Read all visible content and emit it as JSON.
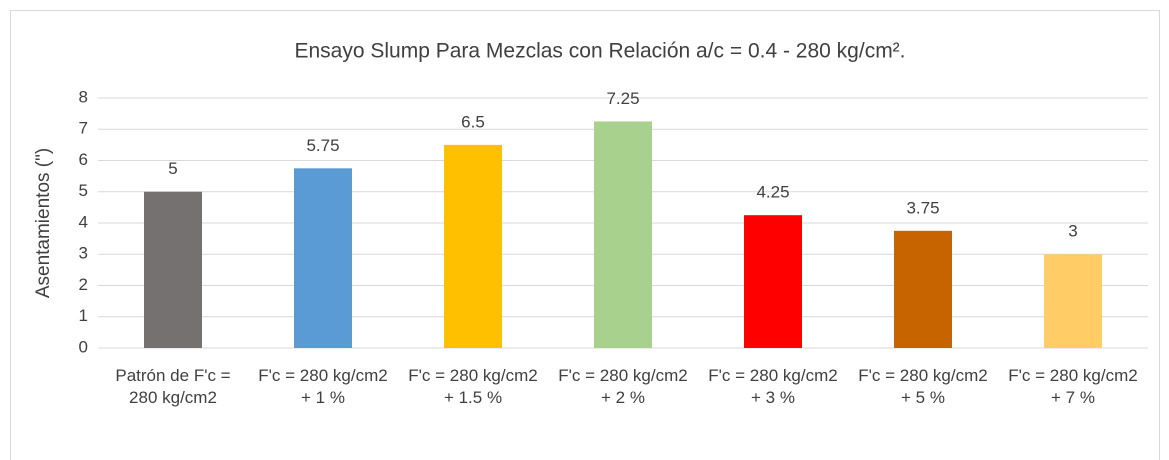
{
  "chart_data": {
    "type": "bar",
    "title": "Ensayo Slump Para Mezclas con Relación a/c = 0.4 - 280 kg/cm².",
    "y_label": "Asentamientos (\")",
    "categories": [
      "Patrón de F'c = 280 kg/cm2",
      "F'c = 280 kg/cm2 + 1 %",
      "F'c = 280 kg/cm2 + 1.5 %",
      "F'c = 280 kg/cm2 + 2 %",
      "F'c = 280 kg/cm2 + 3 %",
      "F'c = 280 kg/cm2 + 5 %",
      "F'c = 280 kg/cm2 + 7 %"
    ],
    "values": [
      5,
      5.75,
      6.5,
      7.25,
      4.25,
      3.75,
      3
    ],
    "colors": [
      "#767171",
      "#5b9bd5",
      "#ffc000",
      "#a9d18e",
      "#ff0000",
      "#c86400",
      "#ffcc66"
    ],
    "ylim": [
      0,
      8
    ],
    "yticks": [
      0,
      1,
      2,
      3,
      4,
      5,
      6,
      7,
      8
    ],
    "grid": true
  }
}
